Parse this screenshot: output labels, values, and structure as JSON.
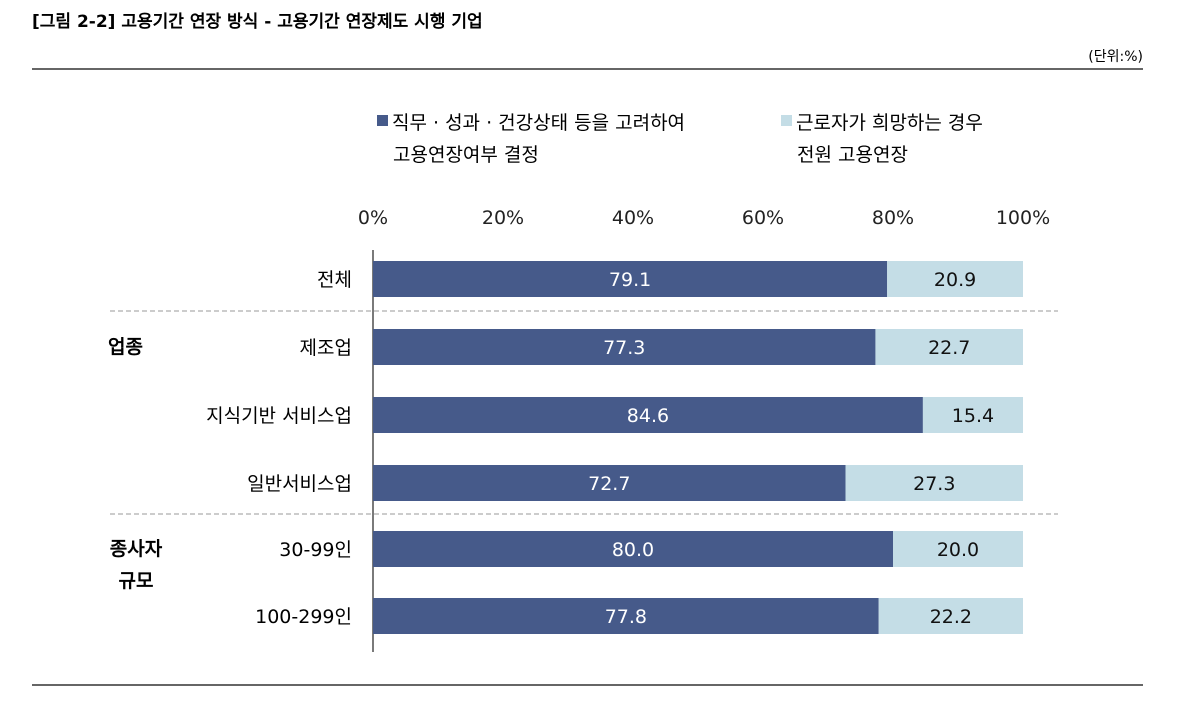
{
  "title": "[그림 2-2] 고용기간 연장 방식 - 고용기간 연장제도 시행 기업",
  "unit": "(단위:%)",
  "colors": {
    "series1": "#465a8a",
    "series2": "#c4dde6"
  },
  "chart_data": {
    "type": "bar",
    "orientation": "horizontal",
    "stacked": true,
    "title": "[그림 2-2] 고용기간 연장 방식 - 고용기간 연장제도 시행 기업",
    "xlim": [
      0,
      100
    ],
    "xticks": [
      "0%",
      "20%",
      "40%",
      "60%",
      "80%",
      "100%"
    ],
    "legend_placement": "top",
    "categories": [
      "전체",
      "제조업",
      "지식기반 서비스업",
      "일반서비스업",
      "30-99인",
      "100-299인"
    ],
    "groups": [
      {
        "label": "업종",
        "members": [
          "제조업",
          "지식기반 서비스업",
          "일반서비스업"
        ]
      },
      {
        "label": "종사자\n규모",
        "members": [
          "30-99인",
          "100-299인"
        ]
      }
    ],
    "group_labels": [
      "업종",
      "종사자",
      "규모"
    ],
    "series": [
      {
        "name": "직무 · 성과 · 건강상태  등을 고려하여 고용연장여부  결정",
        "legend_lines": [
          "직무 · 성과 · 건강상태  등을 고려하여",
          "고용연장여부  결정"
        ],
        "values": [
          79.1,
          77.3,
          84.6,
          72.7,
          80.0,
          77.8
        ],
        "labels": [
          "79.1",
          "77.3",
          "84.6",
          "72.7",
          "80.0",
          "77.8"
        ]
      },
      {
        "name": "근로자가 희망하는 경우 전원 고용연장",
        "legend_lines": [
          "근로자가 희망하는 경우",
          "전원 고용연장"
        ],
        "values": [
          20.9,
          22.7,
          15.4,
          27.3,
          20.0,
          22.2
        ],
        "labels": [
          "20.9",
          "22.7",
          "15.4",
          "27.3",
          "20.0",
          "22.2"
        ]
      }
    ]
  }
}
